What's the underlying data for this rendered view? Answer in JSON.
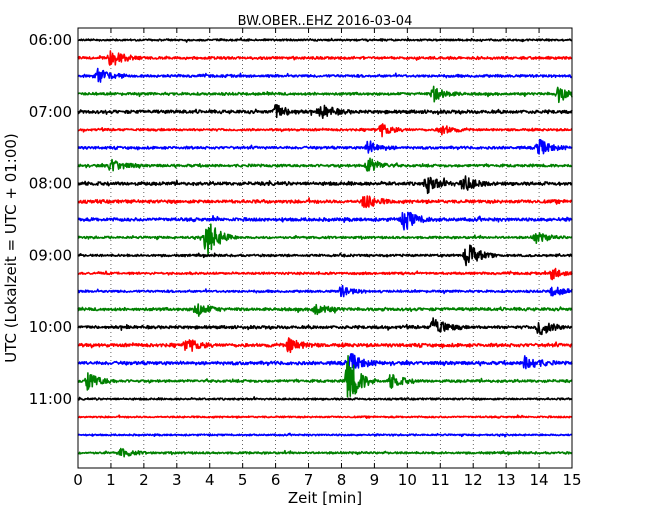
{
  "chart_data": {
    "type": "line",
    "title": "BW.OBER..EHZ 2016-03-04",
    "xlabel": "Zeit  [min]",
    "ylabel": "UTC (Lokalzeit = UTC + 01:00)",
    "xlim": [
      0,
      15
    ],
    "x_ticks": [
      "0",
      "1",
      "2",
      "3",
      "4",
      "5",
      "6",
      "7",
      "8",
      "9",
      "10",
      "11",
      "12",
      "13",
      "14",
      "15"
    ],
    "y_ticks": [
      "06:00",
      "07:00",
      "08:00",
      "09:00",
      "10:00",
      "11:00"
    ],
    "grid": "vertical dotted",
    "trace_interval_minutes": 15,
    "trace_colors": [
      "#000000",
      "#ff0000",
      "#0000ff",
      "#008000"
    ],
    "traces": [
      {
        "start": "06:00",
        "color": "#000000",
        "amp": 0.25
      },
      {
        "start": "06:15",
        "color": "#ff0000",
        "amp": 0.35,
        "events": [
          {
            "t": 1.0,
            "a": 1.0
          }
        ]
      },
      {
        "start": "06:30",
        "color": "#0000ff",
        "amp": 0.35,
        "events": [
          {
            "t": 0.6,
            "a": 0.8
          }
        ]
      },
      {
        "start": "06:45",
        "color": "#008000",
        "amp": 0.35,
        "events": [
          {
            "t": 10.8,
            "a": 0.8
          },
          {
            "t": 14.6,
            "a": 0.9
          }
        ]
      },
      {
        "start": "07:00",
        "color": "#000000",
        "amp": 0.45,
        "events": [
          {
            "t": 6.0,
            "a": 0.8
          },
          {
            "t": 7.4,
            "a": 0.8
          }
        ]
      },
      {
        "start": "07:15",
        "color": "#ff0000",
        "amp": 0.3,
        "events": [
          {
            "t": 9.2,
            "a": 0.7
          },
          {
            "t": 11.0,
            "a": 0.6
          }
        ]
      },
      {
        "start": "07:30",
        "color": "#0000ff",
        "amp": 0.35,
        "events": [
          {
            "t": 8.8,
            "a": 0.8
          },
          {
            "t": 14.0,
            "a": 0.9
          }
        ]
      },
      {
        "start": "07:45",
        "color": "#008000",
        "amp": 0.35,
        "events": [
          {
            "t": 1.0,
            "a": 0.8
          },
          {
            "t": 8.8,
            "a": 0.9
          }
        ]
      },
      {
        "start": "08:00",
        "color": "#000000",
        "amp": 0.45,
        "events": [
          {
            "t": 10.6,
            "a": 1.0
          },
          {
            "t": 11.7,
            "a": 0.9
          }
        ]
      },
      {
        "start": "08:15",
        "color": "#ff0000",
        "amp": 0.45,
        "events": [
          {
            "t": 8.7,
            "a": 0.8
          }
        ]
      },
      {
        "start": "08:30",
        "color": "#0000ff",
        "amp": 0.45,
        "events": [
          {
            "t": 9.9,
            "a": 1.2
          }
        ]
      },
      {
        "start": "08:45",
        "color": "#008000",
        "amp": 0.3,
        "events": [
          {
            "t": 3.9,
            "a": 2.3
          },
          {
            "t": 13.9,
            "a": 0.6
          }
        ]
      },
      {
        "start": "09:00",
        "color": "#000000",
        "amp": 0.3,
        "events": [
          {
            "t": 11.8,
            "a": 1.5
          }
        ]
      },
      {
        "start": "09:15",
        "color": "#ff0000",
        "amp": 0.3,
        "events": [
          {
            "t": 14.4,
            "a": 0.7
          }
        ]
      },
      {
        "start": "09:30",
        "color": "#0000ff",
        "amp": 0.3,
        "events": [
          {
            "t": 8.0,
            "a": 0.6
          },
          {
            "t": 14.4,
            "a": 0.6
          }
        ]
      },
      {
        "start": "09:45",
        "color": "#008000",
        "amp": 0.4,
        "events": [
          {
            "t": 3.6,
            "a": 0.8
          },
          {
            "t": 7.2,
            "a": 0.7
          }
        ]
      },
      {
        "start": "10:00",
        "color": "#000000",
        "amp": 0.4,
        "events": [
          {
            "t": 10.8,
            "a": 1.2
          },
          {
            "t": 14.0,
            "a": 1.0
          }
        ]
      },
      {
        "start": "10:15",
        "color": "#ff0000",
        "amp": 0.45,
        "events": [
          {
            "t": 3.3,
            "a": 0.8
          },
          {
            "t": 6.4,
            "a": 0.8
          }
        ]
      },
      {
        "start": "10:30",
        "color": "#0000ff",
        "amp": 0.45,
        "events": [
          {
            "t": 8.3,
            "a": 1.0
          },
          {
            "t": 13.6,
            "a": 0.9
          }
        ]
      },
      {
        "start": "10:45",
        "color": "#008000",
        "amp": 0.35,
        "events": [
          {
            "t": 0.3,
            "a": 1.0
          },
          {
            "t": 8.2,
            "a": 2.8
          },
          {
            "t": 9.5,
            "a": 0.8
          }
        ]
      },
      {
        "start": "11:00",
        "color": "#000000",
        "amp": 0.25
      },
      {
        "start": "11:15",
        "color": "#ff0000",
        "amp": 0.22
      },
      {
        "start": "11:30",
        "color": "#0000ff",
        "amp": 0.22
      },
      {
        "start": "11:45",
        "color": "#008000",
        "amp": 0.28,
        "events": [
          {
            "t": 1.3,
            "a": 0.5
          }
        ]
      }
    ]
  }
}
